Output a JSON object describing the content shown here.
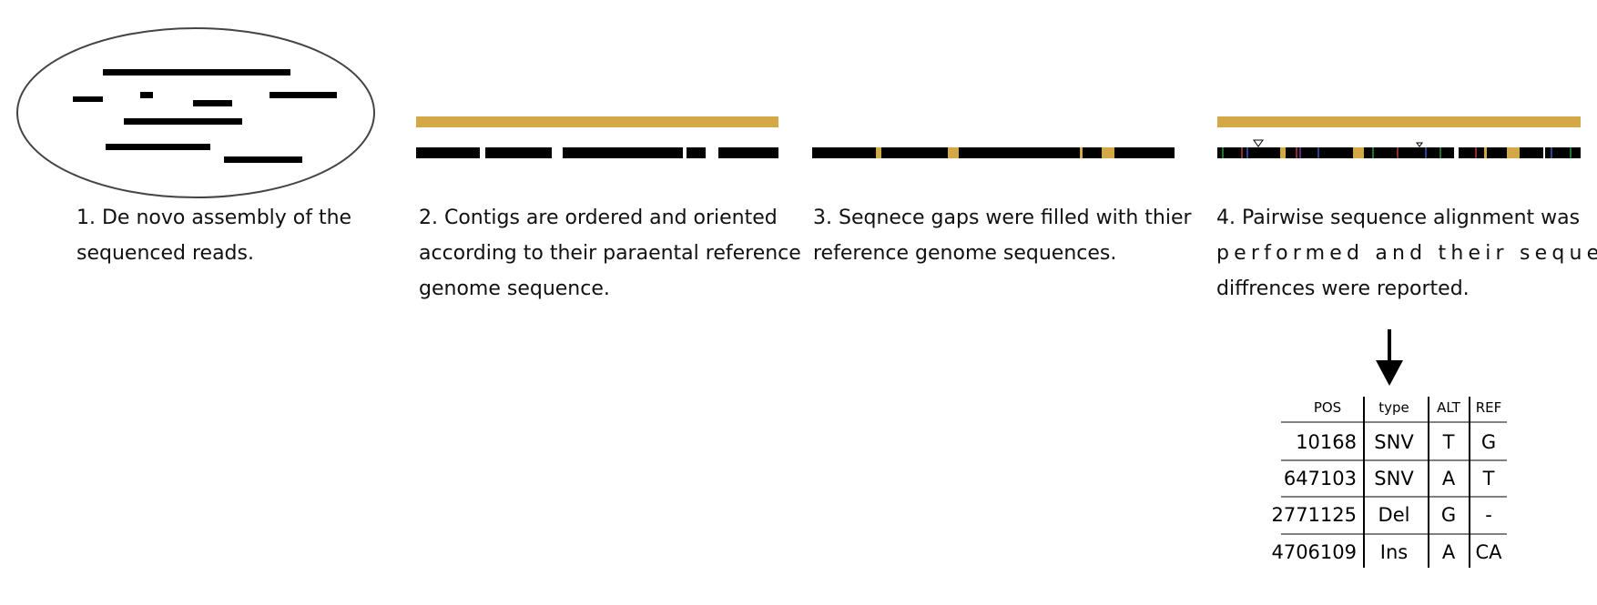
{
  "steps": [
    {
      "lines": [
        "1.  De novo assembly of the",
        "sequenced reads."
      ]
    },
    {
      "lines": [
        "2. Contigs are ordered and oriented",
        "according to their paraental reference",
        "genome sequence."
      ]
    },
    {
      "lines": [
        "3. Seqnece gaps were filled with thier",
        "reference genome sequences."
      ]
    },
    {
      "lines": [
        "4. Pairwise sequence alignment was",
        "performed and their sequence",
        "diffrences were reported."
      ]
    }
  ],
  "variant_table": {
    "headers": [
      "POS",
      "type",
      "ALT",
      "REF"
    ],
    "rows": [
      [
        "10168",
        "SNV",
        "T",
        "G"
      ],
      [
        "647103",
        "SNV",
        "A",
        "T"
      ],
      [
        "2771125",
        "Del",
        "G",
        "-"
      ],
      [
        "4706109",
        "Ins",
        "A",
        "CA"
      ]
    ]
  },
  "colors": {
    "reference": "#d4a846",
    "contig": "#000000",
    "outline": "#444444"
  }
}
